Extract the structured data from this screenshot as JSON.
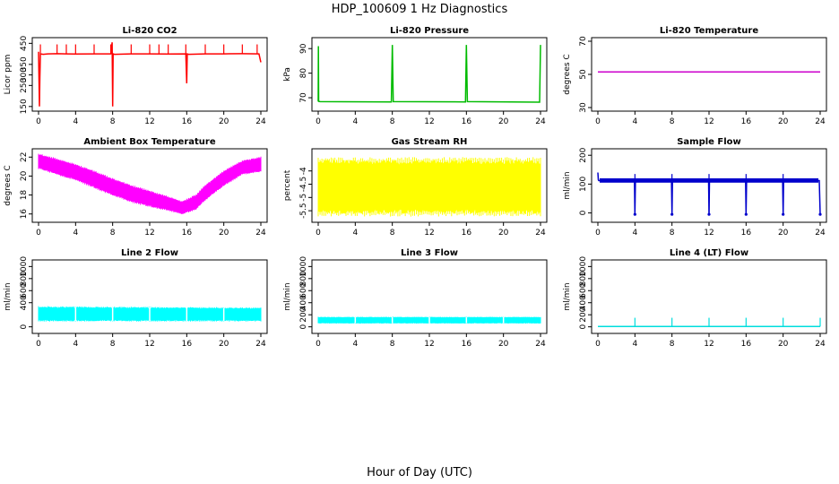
{
  "figure": {
    "title": "HDP_100609  1 Hz Diagnostics",
    "xlabel": "Hour of Day (UTC)"
  },
  "chart_data": [
    {
      "type": "line",
      "title": "Li-820 CO2",
      "ylabel": "Licor ppm",
      "color": "#ff0000",
      "xlim": [
        0,
        24
      ],
      "ylim": [
        145,
        460
      ],
      "xticks": [
        0,
        4,
        8,
        12,
        16,
        20,
        24
      ],
      "yticks": [
        150,
        250,
        300,
        350,
        450
      ],
      "x": [
        0,
        0.1,
        0.15,
        0.2,
        0.5,
        1.0,
        2.0,
        3.0,
        4.0,
        6.0,
        7.8,
        7.95,
        8.0,
        8.05,
        8.2,
        10.0,
        12.0,
        14.0,
        15.9,
        16.0,
        16.05,
        16.2,
        18.0,
        20.0,
        22.0,
        23.8,
        24.0
      ],
      "y": [
        410,
        150,
        290,
        400,
        398,
        400,
        401,
        400,
        399,
        400,
        400,
        455,
        150,
        400,
        398,
        400,
        400,
        399,
        400,
        260,
        400,
        398,
        400,
        400,
        401,
        400,
        360
      ],
      "spikes": [
        0.2,
        2.0,
        3.0,
        4.0,
        6.0,
        7.8,
        10.0,
        12.0,
        13.0,
        14.0,
        15.9,
        18.0,
        20.0,
        22.0,
        23.6
      ],
      "spike_to": 445
    },
    {
      "type": "line",
      "title": "Li-820 Pressure",
      "ylabel": "kPa",
      "color": "#00bb00",
      "xlim": [
        0,
        24
      ],
      "ylim": [
        66,
        93
      ],
      "xticks": [
        0,
        4,
        8,
        12,
        16,
        20,
        24
      ],
      "yticks": [
        70,
        80,
        90
      ],
      "x": [
        0,
        0.02,
        0.05,
        0.2,
        7.9,
        8.0,
        8.1,
        15.9,
        16.0,
        16.1,
        23.9,
        24.0
      ],
      "y": [
        68.5,
        91,
        68.5,
        68.4,
        68.3,
        91.5,
        68.4,
        68.3,
        91.5,
        68.4,
        68.2,
        91.5
      ]
    },
    {
      "type": "line",
      "title": "Li-820 Temperature",
      "ylabel": "degrees C",
      "color": "#cc00cc",
      "xlim": [
        0,
        24
      ],
      "ylim": [
        30,
        70
      ],
      "xticks": [
        0,
        4,
        8,
        12,
        16,
        20,
        24
      ],
      "yticks": [
        30,
        50,
        70
      ],
      "x": [
        0,
        24
      ],
      "y": [
        51.5,
        51.5
      ]
    },
    {
      "type": "area",
      "title": "Ambient Box Temperature",
      "ylabel": "degrees C",
      "color": "#ff00ff",
      "xlim": [
        0,
        24
      ],
      "ylim": [
        15.5,
        22.5
      ],
      "xticks": [
        0,
        4,
        8,
        12,
        16,
        20,
        24
      ],
      "yticks": [
        16,
        18,
        20,
        22
      ],
      "x": [
        0,
        2,
        4,
        6,
        8,
        10,
        12,
        14,
        15.5,
        17,
        18,
        20,
        22,
        24
      ],
      "y_upper": [
        22.3,
        21.8,
        21.2,
        20.5,
        19.7,
        19.0,
        18.4,
        17.8,
        17.3,
        18.0,
        19.0,
        20.5,
        21.6,
        22.0
      ],
      "y_lower": [
        20.8,
        20.2,
        19.6,
        18.8,
        18.0,
        17.3,
        16.8,
        16.4,
        16.0,
        16.5,
        17.5,
        19.0,
        20.2,
        20.5
      ]
    },
    {
      "type": "area",
      "title": "Gas Stream RH",
      "ylabel": "percent",
      "color": "#ffff00",
      "xlim": [
        0,
        24
      ],
      "ylim": [
        -5.8,
        -3.3
      ],
      "xticks": [
        0,
        4,
        8,
        12,
        16,
        20,
        24
      ],
      "yticks": [
        -5.5,
        -5.0,
        -4.5,
        -4.0
      ],
      "x": [
        0,
        24
      ],
      "y_upper": [
        -3.6,
        -3.6
      ],
      "y_lower": [
        -5.6,
        -5.6
      ]
    },
    {
      "type": "line",
      "title": "Sample Flow",
      "ylabel": "ml/min",
      "color": "#0000cc",
      "xlim": [
        0,
        24
      ],
      "ylim": [
        -20,
        210
      ],
      "xticks": [
        0,
        4,
        8,
        12,
        16,
        20,
        24
      ],
      "yticks": [
        0,
        100,
        200
      ],
      "x": [
        0,
        0.05,
        0.1,
        3.95,
        4.0,
        4.05,
        7.95,
        8.0,
        8.05,
        11.95,
        12.0,
        12.05,
        15.95,
        16.0,
        16.05,
        19.95,
        20.0,
        20.05,
        23.9,
        24.0
      ],
      "y": [
        140,
        115,
        112,
        112,
        -5,
        112,
        112,
        -5,
        112,
        112,
        -5,
        112,
        112,
        -5,
        112,
        112,
        -5,
        112,
        112,
        -5
      ],
      "band": [
        105,
        120
      ],
      "spikes": [
        4.0,
        8.0,
        12.0,
        16.0,
        20.0
      ],
      "spike_to": 135
    },
    {
      "type": "area",
      "title": "Line 2 Flow",
      "ylabel": "ml/min",
      "color": "#00ffff",
      "xlim": [
        0,
        24
      ],
      "ylim": [
        -50,
        1050
      ],
      "xticks": [
        0,
        4,
        8,
        12,
        16,
        20,
        24
      ],
      "yticks": [
        0,
        400,
        600,
        800,
        1000
      ],
      "x": [
        0,
        24
      ],
      "y_upper": [
        330,
        310
      ],
      "y_lower": [
        100,
        100
      ],
      "gaps": [
        4.0,
        8.0,
        12.0,
        16.0,
        20.0
      ]
    },
    {
      "type": "area",
      "title": "Line 3 Flow",
      "ylabel": "ml/min",
      "color": "#00ffff",
      "xlim": [
        0,
        24
      ],
      "ylim": [
        -50,
        1050
      ],
      "xticks": [
        0,
        4,
        8,
        12,
        16,
        20,
        24
      ],
      "yticks": [
        0,
        200,
        400,
        600,
        800,
        1000
      ],
      "x": [
        0,
        24
      ],
      "y_upper": [
        160,
        160
      ],
      "y_lower": [
        60,
        60
      ],
      "gaps": [
        4.0,
        8.0,
        12.0,
        16.0,
        20.0
      ]
    },
    {
      "type": "line",
      "title": "Line 4 (LT) Flow",
      "ylabel": "ml/min",
      "color": "#00dddd",
      "xlim": [
        0,
        24
      ],
      "ylim": [
        -50,
        1050
      ],
      "xticks": [
        0,
        4,
        8,
        12,
        16,
        20,
        24
      ],
      "yticks": [
        0,
        200,
        400,
        600,
        800,
        1000
      ],
      "x": [
        0,
        24
      ],
      "y": [
        5,
        5
      ],
      "spikes": [
        4.0,
        8.0,
        12.0,
        16.0,
        20.0,
        24.0
      ],
      "spike_to": 150
    }
  ]
}
